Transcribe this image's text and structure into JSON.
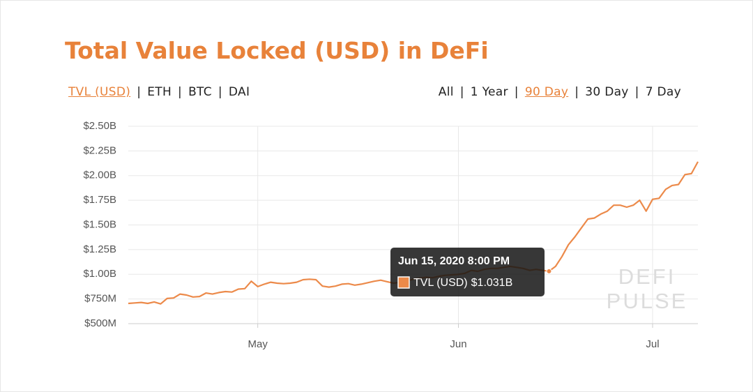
{
  "chart_data": {
    "type": "line",
    "title": "Total Value Locked (USD) in DeFi",
    "categories": [
      null,
      null,
      null,
      null,
      null,
      null,
      null,
      null,
      null,
      null,
      null,
      null,
      null,
      null,
      null,
      null,
      null,
      null,
      null,
      null,
      "May",
      null,
      null,
      null,
      null,
      null,
      null,
      null,
      null,
      null,
      null,
      null,
      null,
      null,
      null,
      null,
      null,
      null,
      null,
      null,
      null,
      null,
      null,
      null,
      null,
      null,
      null,
      null,
      null,
      null,
      null,
      "Jun",
      null,
      null,
      null,
      null,
      null,
      null,
      null,
      null,
      null,
      null,
      null,
      null,
      null,
      null,
      null,
      null,
      null,
      null,
      null,
      null,
      null,
      null,
      null,
      null,
      null,
      null,
      null,
      null,
      null,
      "Jul",
      null,
      null,
      null,
      null,
      null,
      null,
      null
    ],
    "series": [
      {
        "name": "TVL (USD)",
        "color": "#ec8a4a",
        "values": [
          705000000,
          710000000,
          715000000,
          705000000,
          720000000,
          700000000,
          755000000,
          760000000,
          800000000,
          790000000,
          770000000,
          775000000,
          810000000,
          800000000,
          815000000,
          825000000,
          820000000,
          850000000,
          855000000,
          930000000,
          875000000,
          900000000,
          920000000,
          910000000,
          905000000,
          910000000,
          920000000,
          945000000,
          950000000,
          945000000,
          880000000,
          870000000,
          880000000,
          900000000,
          905000000,
          890000000,
          900000000,
          915000000,
          930000000,
          940000000,
          925000000,
          910000000,
          920000000,
          930000000,
          950000000,
          960000000,
          970000000,
          965000000,
          980000000,
          990000000,
          995000000,
          1000000000,
          1010000000,
          1040000000,
          1030000000,
          1050000000,
          1060000000,
          1060000000,
          1070000000,
          1080000000,
          1070000000,
          1060000000,
          1040000000,
          1050000000,
          1040000000,
          1031000000,
          1080000000,
          1180000000,
          1300000000,
          1380000000,
          1470000000,
          1560000000,
          1570000000,
          1610000000,
          1640000000,
          1700000000,
          1700000000,
          1680000000,
          1700000000,
          1750000000,
          1640000000,
          1760000000,
          1770000000,
          1860000000,
          1900000000,
          1910000000,
          2010000000,
          2020000000,
          2140000000
        ]
      }
    ],
    "ylim": [
      500000000,
      2500000000
    ],
    "yticks": [
      {
        "value": 500000000,
        "label": "$500M"
      },
      {
        "value": 750000000,
        "label": "$750M"
      },
      {
        "value": 1000000000,
        "label": "$1.00B"
      },
      {
        "value": 1250000000,
        "label": "$1.25B"
      },
      {
        "value": 1500000000,
        "label": "$1.50B"
      },
      {
        "value": 1750000000,
        "label": "$1.75B"
      },
      {
        "value": 2000000000,
        "label": "$2.00B"
      },
      {
        "value": 2250000000,
        "label": "$2.25B"
      },
      {
        "value": 2500000000,
        "label": "$2.50B"
      }
    ],
    "grid": true,
    "tooltip": {
      "title": "Jun 15, 2020 8:00 PM",
      "value": 1031000000,
      "label": "$1.031B"
    },
    "watermark": [
      "DEFI",
      "PULSE"
    ]
  },
  "controls": {
    "currency": {
      "options": [
        "TVL (USD)",
        "ETH",
        "BTC",
        "DAI"
      ],
      "selected": 0
    },
    "range": {
      "options": [
        "All",
        "1 Year",
        "90 Day",
        "30 Day",
        "7 Day"
      ],
      "selected": 2
    },
    "separator": "|"
  }
}
